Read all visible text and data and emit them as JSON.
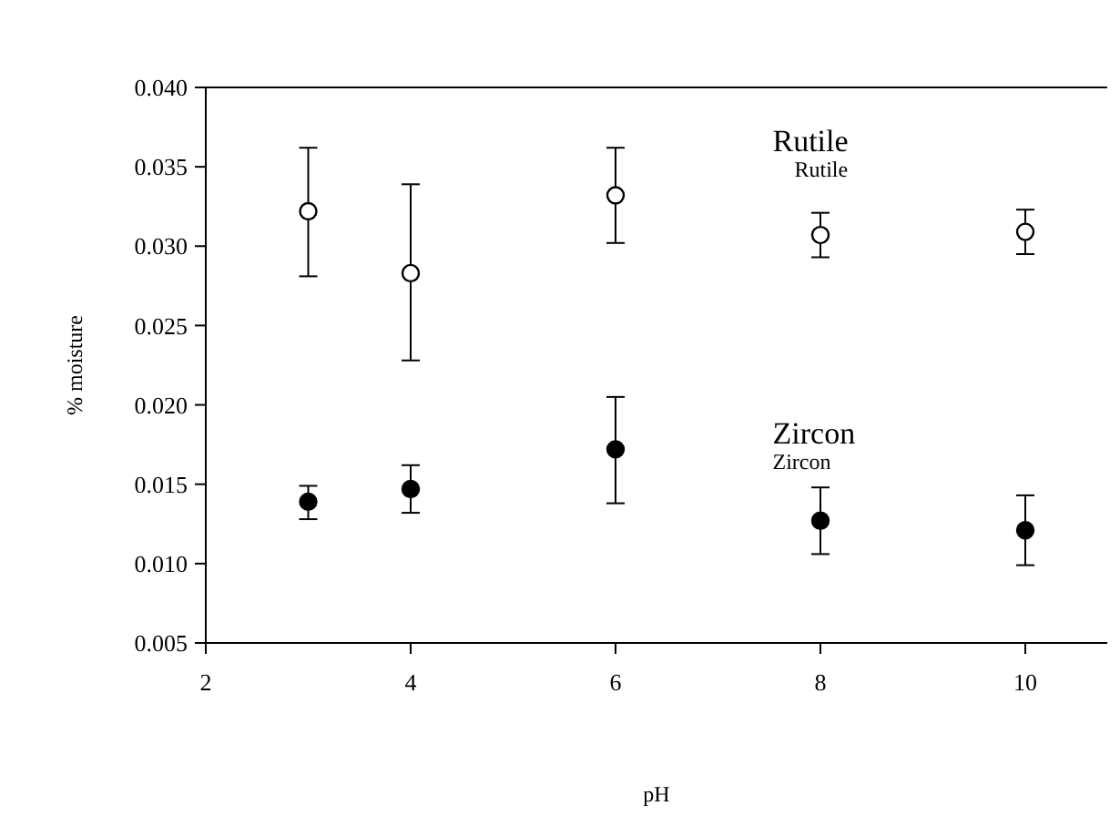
{
  "chart_data": {
    "type": "scatter",
    "xlabel": "pH",
    "ylabel": "% moisture",
    "x": [
      3,
      4,
      6,
      8,
      10
    ],
    "xlim": [
      2,
      10.8
    ],
    "xticks": [
      2,
      4,
      6,
      8,
      10
    ],
    "ylim": [
      0.005,
      0.04
    ],
    "yticks": [
      {
        "value": 0.005,
        "label": "0.005"
      },
      {
        "value": 0.01,
        "label": "0.010"
      },
      {
        "value": 0.015,
        "label": "0.015"
      },
      {
        "value": 0.02,
        "label": "0.020"
      },
      {
        "value": 0.025,
        "label": "0.025"
      },
      {
        "value": 0.03,
        "label": "0.030"
      },
      {
        "value": 0.035,
        "label": "0.035"
      },
      {
        "value": 0.04,
        "label": "0.040"
      }
    ],
    "grid": false,
    "marker": "circle",
    "annotations": [
      "Rutile",
      "Zircon"
    ],
    "series": [
      {
        "name": "Rutile",
        "color": "#000000",
        "values": [
          0.0322,
          0.0283,
          0.0332,
          0.0307,
          0.0309
        ],
        "errors": [
          [
            0.0281,
            0.0362
          ],
          [
            0.0228,
            0.0339
          ],
          [
            0.0302,
            0.0362
          ],
          [
            0.0293,
            0.0321
          ],
          [
            0.0295,
            0.0323
          ]
        ]
      },
      {
        "name": "Zircon",
        "color": "#000000",
        "values": [
          0.0139,
          0.0147,
          0.0172,
          0.0127,
          0.0121
        ],
        "errors": [
          [
            0.0128,
            0.0149
          ],
          [
            0.0132,
            0.0162
          ],
          [
            0.0138,
            0.0205
          ],
          [
            0.0106,
            0.0148
          ],
          [
            0.0099,
            0.0143
          ]
        ]
      }
    ]
  }
}
